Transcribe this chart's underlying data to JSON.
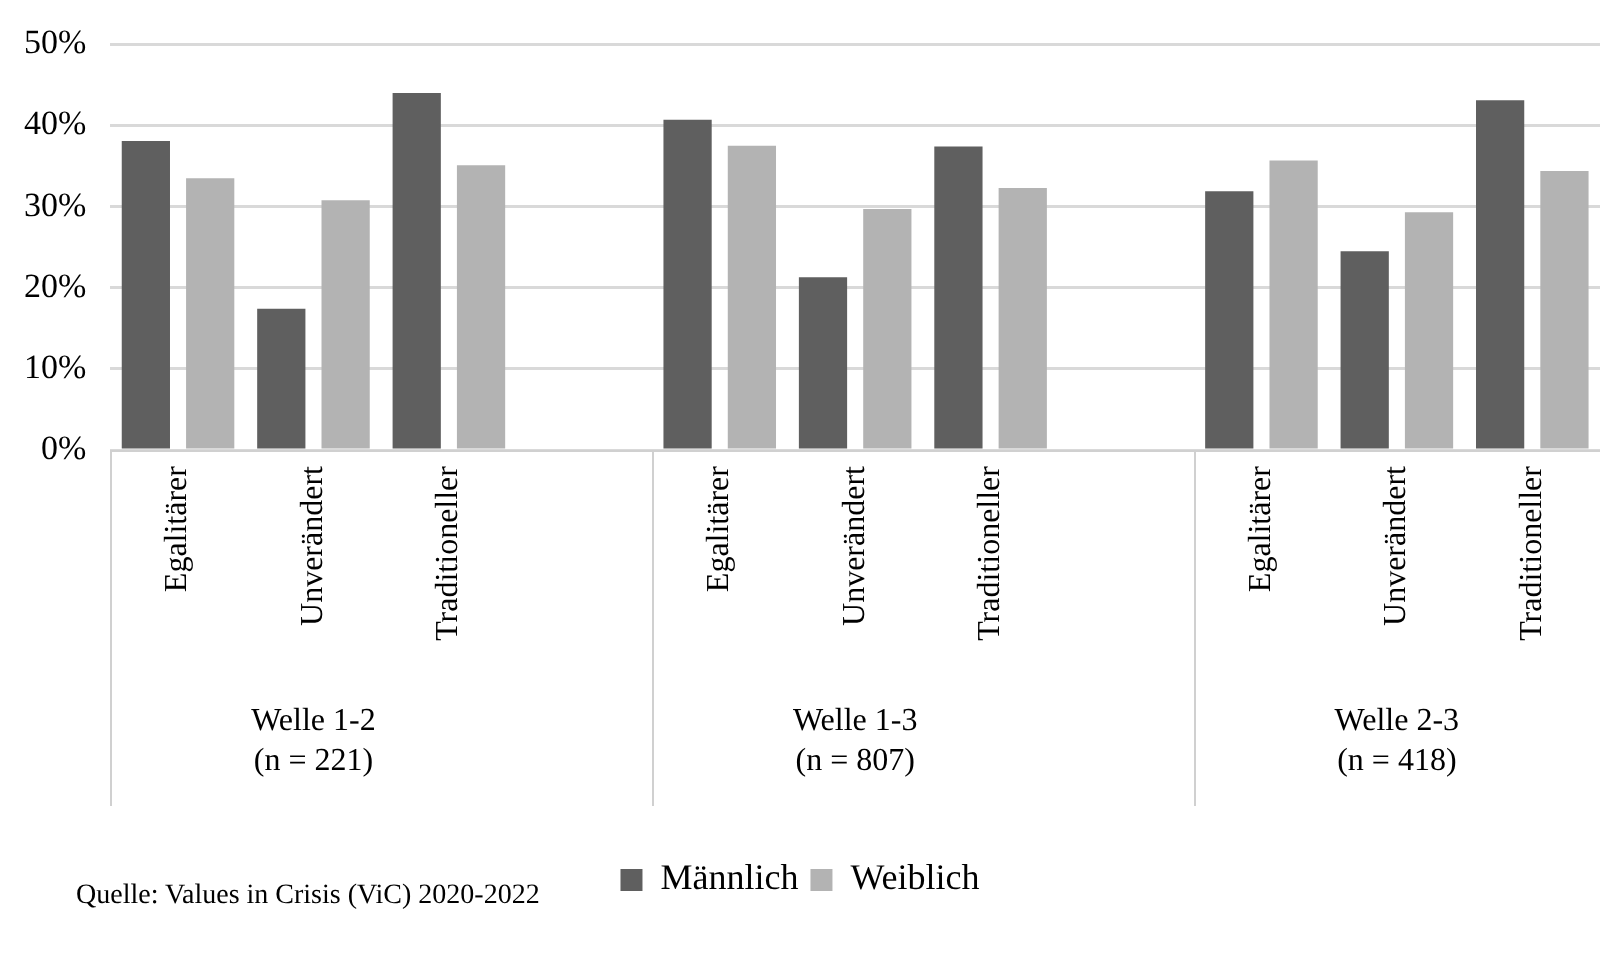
{
  "chart_data": {
    "type": "bar",
    "categories": [
      "Egalitärer",
      "Unverändert",
      "Traditioneller",
      null,
      "Egalitärer",
      "Unverändert",
      "Traditioneller",
      null,
      "Egalitärer",
      "Unverändert",
      "Traditioneller"
    ],
    "series": [
      {
        "name": "Männlich",
        "color": "#5f5f5f",
        "values": [
          38.1,
          17.4,
          44.0,
          null,
          40.7,
          21.3,
          37.4,
          null,
          31.9,
          24.5,
          43.1
        ]
      },
      {
        "name": "Weiblich",
        "color": "#b3b3b3",
        "values": [
          33.5,
          30.8,
          35.1,
          null,
          37.5,
          29.7,
          32.3,
          null,
          35.7,
          29.3,
          34.4
        ]
      }
    ],
    "ylim": [
      0,
      50
    ],
    "yticks": [
      {
        "value": 0,
        "label": "0%"
      },
      {
        "value": 10,
        "label": "10%"
      },
      {
        "value": 20,
        "label": "20%"
      },
      {
        "value": 30,
        "label": "30%"
      },
      {
        "value": 40,
        "label": "40%"
      },
      {
        "value": 50,
        "label": "50%"
      }
    ],
    "grid": "y",
    "legend": "bottom",
    "annotations": [
      "Welle 1-2\n(n = 221)",
      "Welle 1-3\n(n = 807)",
      "Welle 2-3\n(n = 418)",
      "Quelle: Values in Crisis (ViC) 2020-2022"
    ]
  }
}
